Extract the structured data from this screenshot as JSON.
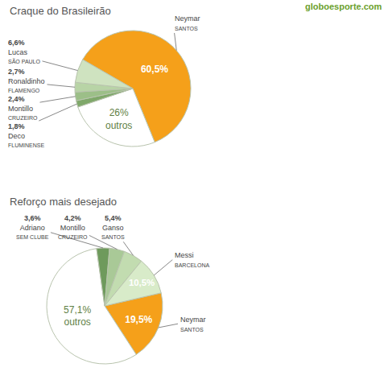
{
  "logo": "globoesporte.com",
  "chart_data": [
    {
      "type": "pie",
      "title": "Craque do Brasileirão",
      "categories": [
        "Neymar",
        "outros",
        "Deco",
        "Montillo",
        "Ronaldinho",
        "Lucas"
      ],
      "clubs": [
        "SANTOS",
        null,
        "FLUMINENSE",
        "CRUZEIRO",
        "FLAMENGO",
        "SÃO PAULO"
      ],
      "values": [
        60.5,
        26,
        1.8,
        2.4,
        2.7,
        6.6
      ],
      "value_labels": [
        "60,5%",
        "26%",
        "1,8%",
        "2,4%",
        "2,7%",
        "6,6%"
      ],
      "colors": [
        "#f5a01a",
        "#ffffff",
        "#7fa86a",
        "#9cbf88",
        "#b8d4a6",
        "#cfe3c0"
      ],
      "data_labels": true
    },
    {
      "type": "pie",
      "title": "Reforço mais desejado",
      "categories": [
        "Neymar",
        "outros",
        "Adriano",
        "Montillo",
        "Ganso",
        "Messi"
      ],
      "clubs": [
        "SANTOS",
        null,
        "SEM CLUBE",
        "CRUZEIRO",
        "SANTOS",
        "BARCELONA"
      ],
      "values": [
        19.5,
        57.1,
        3.6,
        4.2,
        5.4,
        10.5
      ],
      "value_labels": [
        "19,5%",
        "57,1%",
        "3,6%",
        "4,2%",
        "5,4%",
        "10,5%"
      ],
      "colors": [
        "#f5a01a",
        "#ffffff",
        "#6e9a5c",
        "#a9c997",
        "#c2dcb0",
        "#d8ebc9"
      ],
      "data_labels": true
    }
  ]
}
